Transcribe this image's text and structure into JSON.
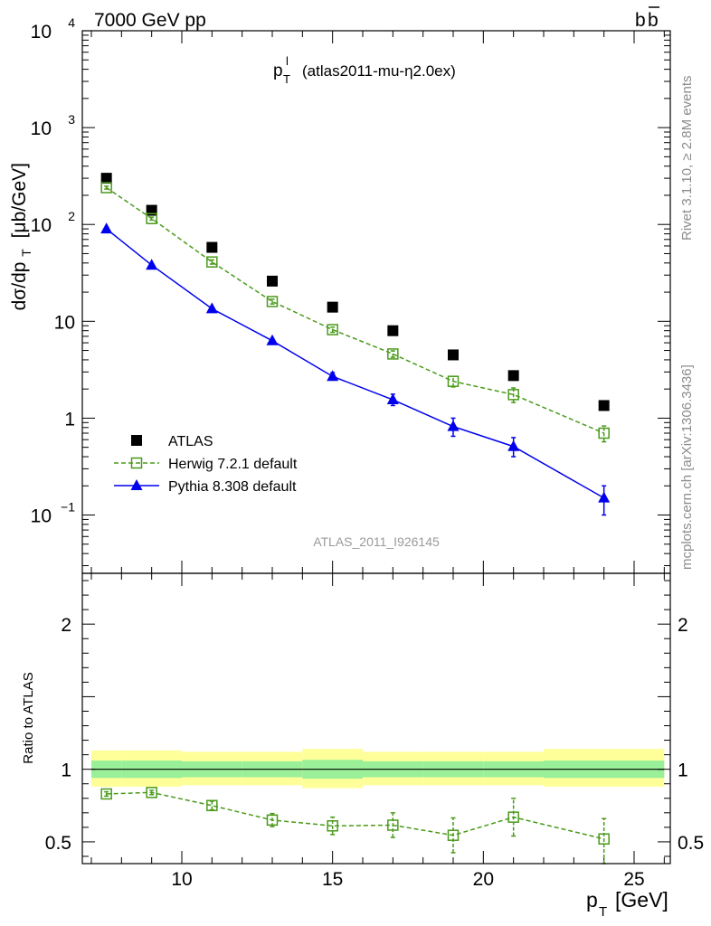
{
  "header": {
    "left": "7000 GeV pp",
    "right": "b",
    "right_bar": "b"
  },
  "side_labels": {
    "rivet": "Rivet 3.1.10, ≥ 2.8M events",
    "mcplots": "mcplots.cern.ch [arXiv:1306.3436]"
  },
  "watermark": "ATLAS_2011_I926145",
  "chart_data": [
    {
      "type": "scatter",
      "title_main": "p",
      "title_sub": "T",
      "title_sup": "l",
      "title_rest": "(atlas2011-mu-η2.0ex)",
      "ylabel": "dσ/dp",
      "ylabel_sub": "T",
      "ylabel_unit": "[μb/GeV]",
      "yscale": "log",
      "xlim": [
        6.7,
        26.2
      ],
      "ylim": [
        0.025,
        10000
      ],
      "yticks": [
        {
          "v": 0.1,
          "base": "10",
          "exp": "−1"
        },
        {
          "v": 1,
          "base": "1",
          "exp": ""
        },
        {
          "v": 10,
          "base": "10",
          "exp": ""
        },
        {
          "v": 100,
          "base": "10",
          "exp": "2"
        },
        {
          "v": 1000,
          "base": "10",
          "exp": "3"
        },
        {
          "v": 10000,
          "base": "10",
          "exp": "4"
        }
      ],
      "legend_position": "bottom-left",
      "series": [
        {
          "name": "ATLAS",
          "marker": "square-filled",
          "color": "#000000",
          "x": [
            7.5,
            9,
            11,
            13,
            15,
            17,
            19,
            21,
            24
          ],
          "y": [
            300,
            140,
            58,
            26,
            14,
            8.0,
            4.5,
            2.75,
            1.35
          ],
          "yerr_low": [
            0,
            0,
            0,
            0,
            0,
            0,
            0,
            0,
            0
          ],
          "yerr_high": [
            0,
            0,
            0,
            0,
            0,
            0,
            0,
            0,
            0
          ]
        },
        {
          "name": "Herwig 7.2.1 default",
          "marker": "square-open",
          "color": "#4a9a1a",
          "dashed": true,
          "x": [
            7.5,
            9,
            11,
            13,
            15,
            17,
            19,
            21,
            24
          ],
          "y": [
            240,
            115,
            41,
            16,
            8.2,
            4.6,
            2.4,
            1.75,
            0.7
          ],
          "yerr_low": [
            8,
            4,
            2,
            0.9,
            0.5,
            0.35,
            0.3,
            0.3,
            0.13
          ],
          "yerr_high": [
            8,
            4,
            2,
            0.9,
            0.5,
            0.35,
            0.3,
            0.3,
            0.13
          ]
        },
        {
          "name": "Pythia 8.308 default",
          "marker": "triangle-filled",
          "color": "#0000ee",
          "dashed": false,
          "x": [
            7.5,
            9,
            11,
            13,
            15,
            17,
            19,
            21,
            24
          ],
          "y": [
            90,
            38,
            13.5,
            6.3,
            2.7,
            1.55,
            0.82,
            0.51,
            0.15
          ],
          "yerr_low": [
            2,
            1,
            0.4,
            0.2,
            0.2,
            0.2,
            0.17,
            0.11,
            0.05
          ],
          "yerr_high": [
            2,
            1,
            0.4,
            0.2,
            0.25,
            0.22,
            0.18,
            0.12,
            0.05
          ]
        }
      ]
    },
    {
      "type": "scatter",
      "ylabel": "Ratio to ATLAS",
      "xlabel": "p",
      "xlabel_sub": "T",
      "xlabel_unit": "[GeV]",
      "xlim": [
        6.7,
        26.2
      ],
      "ylim": [
        0.35,
        2.35
      ],
      "xticks": [
        10,
        15,
        20,
        25
      ],
      "yticks": [
        0.5,
        1,
        2
      ],
      "bands": {
        "outer_color": "#ffff99",
        "inner_color": "#99f099",
        "bins": [
          {
            "x0": 7,
            "x1": 8,
            "outer": [
              0.88,
              1.13
            ],
            "inner": [
              0.94,
              1.06
            ]
          },
          {
            "x0": 8,
            "x1": 10,
            "outer": [
              0.88,
              1.13
            ],
            "inner": [
              0.94,
              1.06
            ]
          },
          {
            "x0": 10,
            "x1": 12,
            "outer": [
              0.89,
              1.12
            ],
            "inner": [
              0.945,
              1.055
            ]
          },
          {
            "x0": 12,
            "x1": 14,
            "outer": [
              0.89,
              1.12
            ],
            "inner": [
              0.945,
              1.055
            ]
          },
          {
            "x0": 14,
            "x1": 16,
            "outer": [
              0.87,
              1.14
            ],
            "inner": [
              0.935,
              1.065
            ]
          },
          {
            "x0": 16,
            "x1": 18,
            "outer": [
              0.89,
              1.12
            ],
            "inner": [
              0.945,
              1.055
            ]
          },
          {
            "x0": 18,
            "x1": 20,
            "outer": [
              0.89,
              1.12
            ],
            "inner": [
              0.945,
              1.055
            ]
          },
          {
            "x0": 20,
            "x1": 22,
            "outer": [
              0.89,
              1.12
            ],
            "inner": [
              0.945,
              1.055
            ]
          },
          {
            "x0": 22,
            "x1": 26,
            "outer": [
              0.88,
              1.14
            ],
            "inner": [
              0.94,
              1.06
            ]
          }
        ]
      },
      "series": [
        {
          "name": "Herwig 7.2.1 default",
          "marker": "square-open",
          "color": "#4a9a1a",
          "dashed": true,
          "x": [
            7.5,
            9,
            11,
            13,
            15,
            17,
            19,
            21,
            24
          ],
          "y": [
            0.83,
            0.84,
            0.75,
            0.65,
            0.61,
            0.615,
            0.545,
            0.67,
            0.52
          ],
          "yerr_low": [
            0.015,
            0.015,
            0.03,
            0.045,
            0.06,
            0.085,
            0.12,
            0.13,
            0.17
          ],
          "yerr_high": [
            0.015,
            0.015,
            0.03,
            0.045,
            0.06,
            0.085,
            0.12,
            0.13,
            0.14
          ]
        }
      ]
    }
  ]
}
